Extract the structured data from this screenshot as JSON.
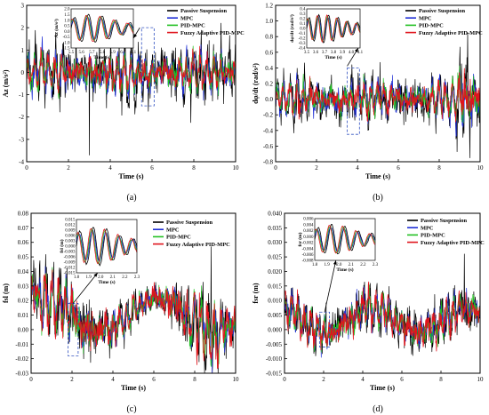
{
  "legend_entries": [
    "Passive Suspension",
    "MPC",
    "PID-MPC",
    "Fuzzy Adaptive PID-MPC"
  ],
  "series_colors": [
    "#000000",
    "#1f2fd6",
    "#22c022",
    "#e0141c"
  ],
  "chart_data": [
    {
      "type": "line",
      "caption": "(a)",
      "xlabel": "Time (s)",
      "ylabel": "Az (m/s²)",
      "xlim": [
        0,
        10
      ],
      "ylim": [
        -4,
        3
      ],
      "xticks": [
        0,
        2,
        4,
        6,
        8,
        10
      ],
      "yticks": [
        -4,
        -3,
        -2,
        -1,
        0,
        1,
        2,
        3
      ],
      "legend_position": "top-right",
      "series": [
        {
          "name": "Passive Suspension",
          "amplitude": 1.5,
          "peaks": [
            [
              3.0,
              -3.7
            ],
            [
              5.0,
              2.6
            ],
            [
              9.3,
              2.2
            ]
          ]
        },
        {
          "name": "MPC",
          "amplitude": 1.2
        },
        {
          "name": "PID-MPC",
          "amplitude": 1.0
        },
        {
          "name": "Fuzzy Adaptive PID-MPC",
          "amplitude": 0.9
        }
      ],
      "inset": {
        "xlim": [
          5.5,
          6.1
        ],
        "ylim": [
          -1.5,
          2.0
        ],
        "xticks": [
          "5.5",
          "5.6",
          "5.7",
          "5.8",
          "5.9",
          "6.0",
          "6.1"
        ],
        "yticks": [
          "2.0",
          "1.5",
          "1.0",
          "0.5",
          "0.0",
          "-0.5",
          "-1.0",
          "-1.5"
        ],
        "xlabel": "Time (s)",
        "ylabel": "Az (m/s²)"
      }
    },
    {
      "type": "line",
      "caption": "(b)",
      "xlabel": "Time (s)",
      "ylabel": "dφ/dt (rad/s²)",
      "xlim": [
        0,
        10
      ],
      "ylim": [
        -0.8,
        1.2
      ],
      "xticks": [
        0,
        2,
        4,
        6,
        8,
        10
      ],
      "yticks": [
        "-0.8",
        "-0.6",
        "-0.4",
        "-0.2",
        "0.0",
        "0.2",
        "0.4",
        "0.6",
        "0.8",
        "1.0",
        "1.2"
      ],
      "legend_position": "top-right",
      "series": [
        {
          "name": "Passive Suspension",
          "amplitude": 0.35,
          "peaks": [
            [
              9.4,
              0.85
            ],
            [
              9.5,
              -0.75
            ]
          ]
        },
        {
          "name": "MPC",
          "amplitude": 0.3
        },
        {
          "name": "PID-MPC",
          "amplitude": 0.27
        },
        {
          "name": "Fuzzy Adaptive PID-MPC",
          "amplitude": 0.25
        }
      ],
      "inset": {
        "xlim": [
          3.5,
          4.1
        ],
        "ylim": [
          -0.4,
          0.4
        ],
        "xticks": [
          "3.5",
          "3.6",
          "3.7",
          "3.8",
          "3.9",
          "4.0",
          "4.1"
        ],
        "yticks": [
          "0.4",
          "0.3",
          "0.2",
          "0.1",
          "0.0",
          "-0.1",
          "-0.2",
          "-0.3",
          "-0.4"
        ],
        "xlabel": "Time (s)",
        "ylabel": "dφ/dt (rad/s²)"
      }
    },
    {
      "type": "line",
      "caption": "(c)",
      "xlabel": "Time (s)",
      "ylabel": "fsl (m)",
      "xlim": [
        0,
        10
      ],
      "ylim": [
        -0.03,
        0.08
      ],
      "xticks": [
        0,
        2,
        4,
        6,
        8,
        10
      ],
      "yticks": [
        "-0.03",
        "-0.02",
        "-0.01",
        "0.00",
        "0.01",
        "0.02",
        "0.03",
        "0.04",
        "0.05",
        "0.06",
        "0.07",
        "0.08"
      ],
      "legend_position": "top-right",
      "series": [
        {
          "name": "Passive Suspension",
          "amplitude": 0.02,
          "peaks": [
            [
              8.8,
              0.057
            ]
          ]
        },
        {
          "name": "MPC",
          "amplitude": 0.018
        },
        {
          "name": "PID-MPC",
          "amplitude": 0.018
        },
        {
          "name": "Fuzzy Adaptive PID-MPC",
          "amplitude": 0.019
        }
      ],
      "inset": {
        "xlim": [
          1.8,
          2.3
        ],
        "ylim": [
          -0.015,
          0.015
        ],
        "xticks": [
          "1.8",
          "1.9",
          "2.0",
          "2.1",
          "2.2",
          "2.3"
        ],
        "yticks": [
          "0.015",
          "0.012",
          "0.009",
          "0.006",
          "0.003",
          "0.000",
          "-0.003",
          "-0.006",
          "-0.009",
          "-0.012",
          "-0.015"
        ],
        "xlabel": "Time (s)",
        "ylabel": "fsl (m)"
      }
    },
    {
      "type": "line",
      "caption": "(d)",
      "xlabel": "Time (s)",
      "ylabel": "fsr (m)",
      "xlim": [
        0,
        10
      ],
      "ylim": [
        -0.015,
        0.04
      ],
      "xticks": [
        0,
        2,
        4,
        6,
        8,
        10
      ],
      "yticks": [
        "-0.015",
        "-0.010",
        "-0.005",
        "0.000",
        "0.005",
        "0.010",
        "0.015",
        "0.020",
        "0.025",
        "0.030",
        "0.035",
        "0.040"
      ],
      "legend_position": "top-right",
      "series": [
        {
          "name": "Passive Suspension",
          "amplitude": 0.009,
          "peaks": [
            [
              9.2,
              0.026
            ]
          ]
        },
        {
          "name": "MPC",
          "amplitude": 0.008
        },
        {
          "name": "PID-MPC",
          "amplitude": 0.008
        },
        {
          "name": "Fuzzy Adaptive PID-MPC",
          "amplitude": 0.0085
        }
      ],
      "inset": {
        "xlim": [
          1.8,
          2.3
        ],
        "ylim": [
          -0.008,
          0.006
        ],
        "xticks": [
          "1.8",
          "1.9",
          "2.0",
          "2.1",
          "2.2",
          "2.3"
        ],
        "yticks": [
          "0.006",
          "0.004",
          "0.002",
          "0.000",
          "-0.002",
          "-0.004",
          "-0.006",
          "-0.008"
        ],
        "xlabel": "Time (s)",
        "ylabel": "fsr (m)"
      }
    }
  ]
}
